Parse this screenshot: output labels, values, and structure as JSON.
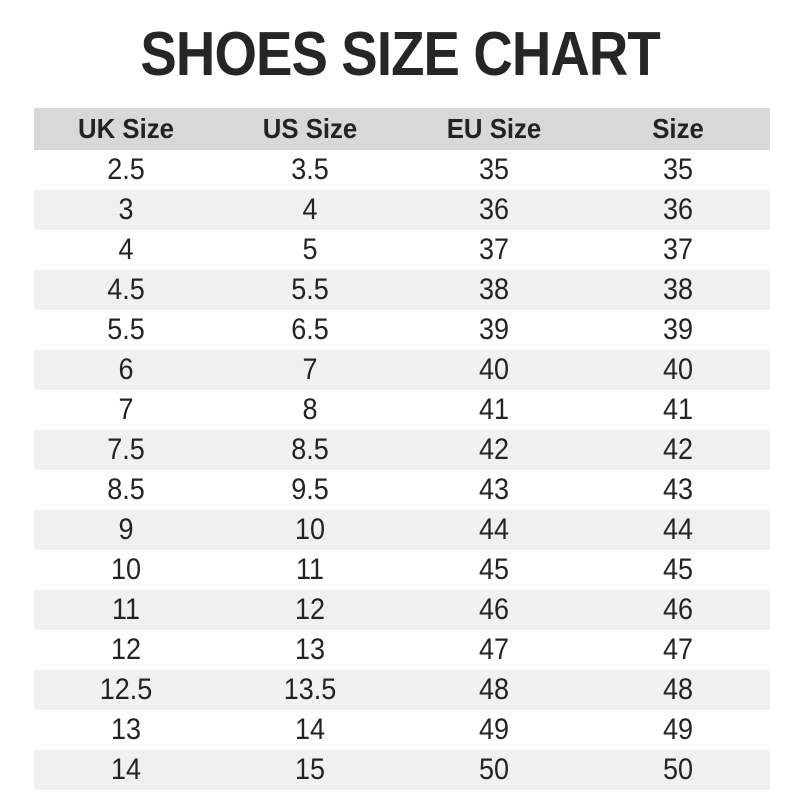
{
  "title": "SHOES SIZE CHART",
  "chart_data": {
    "type": "table",
    "title": "SHOES SIZE CHART",
    "columns": [
      "UK Size",
      "US Size",
      "EU Size",
      "Size"
    ],
    "rows": [
      [
        "2.5",
        "3.5",
        "35",
        "35"
      ],
      [
        "3",
        "4",
        "36",
        "36"
      ],
      [
        "4",
        "5",
        "37",
        "37"
      ],
      [
        "4.5",
        "5.5",
        "38",
        "38"
      ],
      [
        "5.5",
        "6.5",
        "39",
        "39"
      ],
      [
        "6",
        "7",
        "40",
        "40"
      ],
      [
        "7",
        "8",
        "41",
        "41"
      ],
      [
        "7.5",
        "8.5",
        "42",
        "42"
      ],
      [
        "8.5",
        "9.5",
        "43",
        "43"
      ],
      [
        "9",
        "10",
        "44",
        "44"
      ],
      [
        "10",
        "11",
        "45",
        "45"
      ],
      [
        "11",
        "12",
        "46",
        "46"
      ],
      [
        "12",
        "13",
        "47",
        "47"
      ],
      [
        "12.5",
        "13.5",
        "48",
        "48"
      ],
      [
        "13",
        "14",
        "49",
        "49"
      ],
      [
        "14",
        "15",
        "50",
        "50"
      ]
    ],
    "layout": {
      "stripe_pattern": "even rows white, odd rows light gray",
      "alignment": "center"
    }
  },
  "colors": {
    "header_bg": "#d8d8d8",
    "stripe_bg": "#f0f0f0",
    "text": "#232323",
    "title": "#262626",
    "background": "#ffffff"
  }
}
